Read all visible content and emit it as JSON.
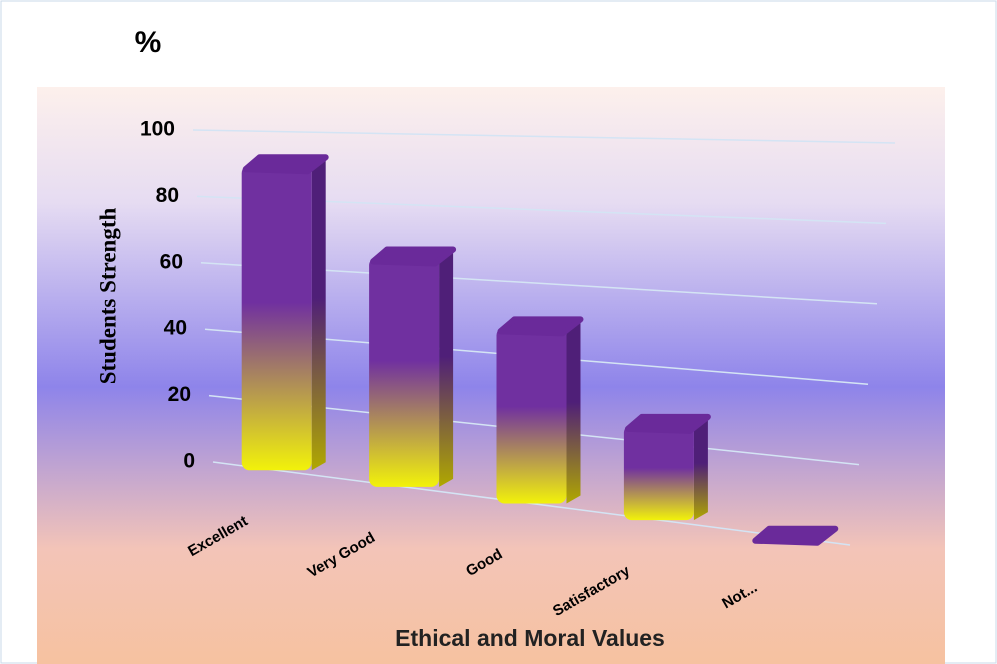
{
  "chart_data": {
    "type": "bar",
    "title": "%",
    "y_label": "Students Strength",
    "x_label": "Ethical and Moral Values",
    "categories": [
      "Excellent",
      "Very Good",
      "Good",
      "Satisfactory",
      "Not..."
    ],
    "values": [
      90,
      65,
      48,
      25,
      0
    ],
    "colors": {
      "top": "#7030a0",
      "bottom": "#f2f20a"
    },
    "ylim": [
      0,
      100
    ],
    "yticks": [
      0,
      20,
      40,
      60,
      80,
      100
    ],
    "grid": true
  }
}
